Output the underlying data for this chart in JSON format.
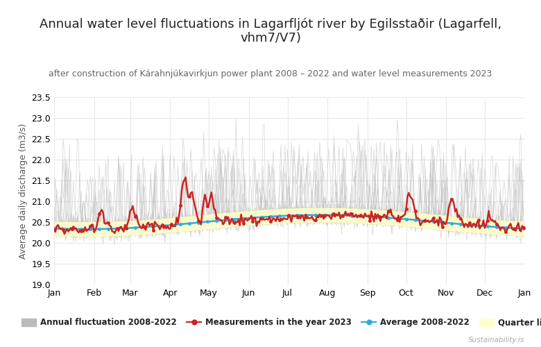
{
  "title": "Annual water level fluctuations in Lagarfljót river by Egilsstaðir (Lagarfell,\nvhm7/V7)",
  "subtitle": "after construction of Kárahnjúkavirkjun power plant 2008 – 2022 and water level measurements 2023",
  "ylabel": "Average daily discharge (m3/s)",
  "ylim": [
    19.0,
    23.5
  ],
  "yticks": [
    19.0,
    19.5,
    20.0,
    20.5,
    21.0,
    21.5,
    22.0,
    22.5,
    23.0,
    23.5
  ],
  "background_color": "#ffffff",
  "grid_color": "#e8e8e8",
  "annual_color": "#bbbbbb",
  "measurements_color": "#cc2222",
  "average_color": "#33aadd",
  "quarter_color": "#ffffcc",
  "quarter_edge_color": "#dddd99",
  "title_fontsize": 13,
  "subtitle_fontsize": 9,
  "axis_fontsize": 9,
  "watermark": "Sustainability.is",
  "legend_labels": [
    "Annual fluctuation 2008-2022",
    "Measurements in the year 2023",
    "Average 2008-2022",
    "Quarter limit"
  ]
}
